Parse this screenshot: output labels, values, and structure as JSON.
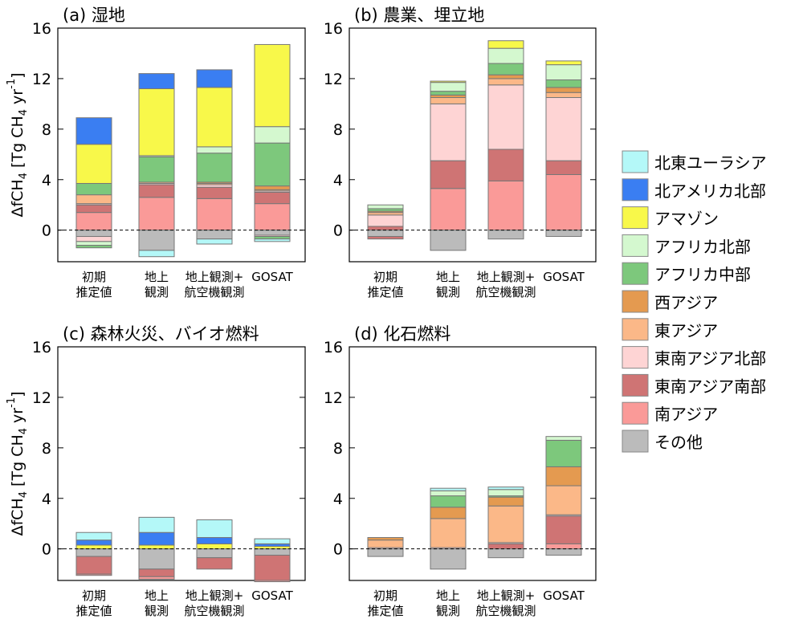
{
  "ylabel": {
    "prefix": "ΔfCH",
    "sub": "4",
    "mid": " [Tg CH",
    "sub2": "4",
    "mid2": " yr",
    "sup": "-1",
    "suffix": "]"
  },
  "colors": {
    "ne_eurasia": "#b4f8f8",
    "na_north": "#3a7ef2",
    "amazon": "#f8f84a",
    "africa_north": "#d4f8cf",
    "africa_central": "#7dc87c",
    "west_asia": "#e49a50",
    "east_asia": "#fbb888",
    "se_asia_north": "#fed4d4",
    "se_asia_south": "#cf7474",
    "south_asia": "#fa9a98",
    "other": "#bbbbbb"
  },
  "legend": [
    {
      "key": "ne_eurasia",
      "label": "北東ユーラシア"
    },
    {
      "key": "na_north",
      "label": "北アメリカ北部"
    },
    {
      "key": "amazon",
      "label": "アマゾン"
    },
    {
      "key": "africa_north",
      "label": "アフリカ北部"
    },
    {
      "key": "africa_central",
      "label": "アフリカ中部"
    },
    {
      "key": "west_asia",
      "label": "西アジア"
    },
    {
      "key": "east_asia",
      "label": "東アジア"
    },
    {
      "key": "se_asia_north",
      "label": "東南アジア北部"
    },
    {
      "key": "se_asia_south",
      "label": "東南アジア南部"
    },
    {
      "key": "south_asia",
      "label": "南アジア"
    },
    {
      "key": "other",
      "label": "その他"
    }
  ],
  "chart_data": [
    {
      "type": "bar",
      "stacked": true,
      "title": "(a) 湿地",
      "categories": [
        [
          "初期",
          "推定値"
        ],
        [
          "地上",
          "観測"
        ],
        [
          "地上観測+",
          "航空機観測"
        ],
        [
          "GOSAT"
        ]
      ],
      "ylim": [
        -2.5,
        16
      ],
      "yticks": [
        0,
        4,
        8,
        12,
        16
      ],
      "positive_order": [
        "south_asia",
        "se_asia_south",
        "se_asia_north",
        "east_asia",
        "west_asia",
        "africa_central",
        "africa_north",
        "amazon",
        "na_north",
        "ne_eurasia"
      ],
      "negative_order": [
        "other",
        "se_asia_north",
        "africa_north",
        "africa_central",
        "ne_eurasia"
      ],
      "series": [
        {
          "key": "south_asia",
          "values": [
            1.4,
            2.6,
            2.5,
            2.1
          ]
        },
        {
          "key": "se_asia_south",
          "values": [
            0.6,
            1.0,
            0.9,
            0.9
          ]
        },
        {
          "key": "se_asia_north",
          "values": [
            0.1,
            0.1,
            0.2,
            0.1
          ]
        },
        {
          "key": "east_asia",
          "values": [
            0.7,
            0.1,
            0.1,
            0.1
          ]
        },
        {
          "key": "west_asia",
          "values": [
            0.0,
            0.0,
            0.1,
            0.3
          ]
        },
        {
          "key": "africa_central",
          "values": [
            0.9,
            2.0,
            2.3,
            3.4
          ]
        },
        {
          "key": "africa_north",
          "values": [
            0.0,
            0.1,
            0.5,
            1.3
          ]
        },
        {
          "key": "amazon",
          "values": [
            3.1,
            5.3,
            4.7,
            6.5
          ]
        },
        {
          "key": "na_north",
          "values": [
            2.1,
            1.2,
            1.4,
            0.0
          ]
        },
        {
          "key": "ne_eurasia",
          "values": [
            0.0,
            0.0,
            0.0,
            0.0
          ]
        },
        {
          "key": "other",
          "values": [
            -0.5,
            -1.6,
            -0.7,
            -0.4
          ]
        },
        {
          "key": "se_asia_north",
          "values": [
            -0.4,
            0.0,
            0.0,
            -0.1
          ]
        },
        {
          "key": "africa_north",
          "values": [
            -0.3,
            0.0,
            0.0,
            0.0
          ]
        },
        {
          "key": "africa_central",
          "values": [
            -0.2,
            0.0,
            0.0,
            -0.2
          ]
        },
        {
          "key": "ne_eurasia",
          "values": [
            0.0,
            -0.5,
            -0.4,
            -0.2
          ]
        }
      ]
    },
    {
      "type": "bar",
      "stacked": true,
      "title": "(b) 農業、埋立地",
      "categories": [
        [
          "初期",
          "推定値"
        ],
        [
          "地上",
          "観測"
        ],
        [
          "地上観測+",
          "航空機観測"
        ],
        [
          "GOSAT"
        ]
      ],
      "ylim": [
        -2.5,
        16
      ],
      "yticks": [
        0,
        4,
        8,
        12,
        16
      ],
      "positive_order": [
        "south_asia",
        "se_asia_south",
        "se_asia_north",
        "east_asia",
        "west_asia",
        "africa_central",
        "africa_north",
        "amazon",
        "na_north",
        "ne_eurasia"
      ],
      "negative_order": [
        "other",
        "se_asia_south"
      ],
      "series": [
        {
          "key": "south_asia",
          "values": [
            0.0,
            3.3,
            3.9,
            4.4
          ]
        },
        {
          "key": "se_asia_south",
          "values": [
            0.3,
            2.2,
            2.5,
            1.1
          ]
        },
        {
          "key": "se_asia_north",
          "values": [
            0.9,
            4.5,
            5.1,
            5.0
          ]
        },
        {
          "key": "east_asia",
          "values": [
            0.2,
            0.5,
            0.5,
            0.4
          ]
        },
        {
          "key": "west_asia",
          "values": [
            0.1,
            0.2,
            0.3,
            0.4
          ]
        },
        {
          "key": "africa_central",
          "values": [
            0.2,
            0.3,
            0.9,
            0.6
          ]
        },
        {
          "key": "africa_north",
          "values": [
            0.3,
            0.7,
            1.2,
            1.2
          ]
        },
        {
          "key": "amazon",
          "values": [
            0.0,
            0.1,
            0.6,
            0.3
          ]
        },
        {
          "key": "na_north",
          "values": [
            0.0,
            0.0,
            0.0,
            0.0
          ]
        },
        {
          "key": "ne_eurasia",
          "values": [
            0.0,
            0.0,
            0.0,
            0.0
          ]
        },
        {
          "key": "other",
          "values": [
            -0.5,
            -1.6,
            -0.7,
            -0.5
          ]
        },
        {
          "key": "se_asia_south",
          "values": [
            -0.2,
            0.0,
            0.0,
            0.0
          ]
        }
      ]
    },
    {
      "type": "bar",
      "stacked": true,
      "title": "(c) 森林火災、バイオ燃料",
      "categories": [
        [
          "初期",
          "推定値"
        ],
        [
          "地上",
          "観測"
        ],
        [
          "地上観測+",
          "航空機観測"
        ],
        [
          "GOSAT"
        ]
      ],
      "ylim": [
        -2.5,
        16
      ],
      "yticks": [
        0,
        4,
        8,
        12,
        16
      ],
      "positive_order": [
        "amazon",
        "na_north",
        "ne_eurasia"
      ],
      "negative_order": [
        "other",
        "se_asia_south",
        "south_asia"
      ],
      "series": [
        {
          "key": "amazon",
          "values": [
            0.3,
            0.3,
            0.4,
            0.2
          ]
        },
        {
          "key": "na_north",
          "values": [
            0.4,
            1.0,
            0.5,
            0.2
          ]
        },
        {
          "key": "ne_eurasia",
          "values": [
            0.6,
            1.2,
            1.4,
            0.4
          ]
        },
        {
          "key": "other",
          "values": [
            -0.6,
            -1.6,
            -0.7,
            -0.5
          ]
        },
        {
          "key": "se_asia_south",
          "values": [
            -1.4,
            -0.6,
            -0.9,
            -2.0
          ]
        },
        {
          "key": "south_asia",
          "values": [
            -0.1,
            -0.2,
            0.0,
            -0.1
          ]
        }
      ]
    },
    {
      "type": "bar",
      "stacked": true,
      "title": "(d) 化石燃料",
      "categories": [
        [
          "初期",
          "推定値"
        ],
        [
          "地上",
          "観測"
        ],
        [
          "地上観測+",
          "航空機観測"
        ],
        [
          "GOSAT"
        ]
      ],
      "ylim": [
        -2.5,
        16
      ],
      "yticks": [
        0,
        4,
        8,
        12,
        16
      ],
      "positive_order": [
        "south_asia",
        "se_asia_south",
        "se_asia_north",
        "east_asia",
        "west_asia",
        "africa_central",
        "africa_north",
        "amazon",
        "na_north",
        "ne_eurasia"
      ],
      "negative_order": [
        "other"
      ],
      "series": [
        {
          "key": "south_asia",
          "values": [
            0.0,
            0.0,
            0.0,
            0.4
          ]
        },
        {
          "key": "se_asia_south",
          "values": [
            0.0,
            0.0,
            0.4,
            2.2
          ]
        },
        {
          "key": "se_asia_north",
          "values": [
            0.1,
            0.1,
            0.1,
            0.1
          ]
        },
        {
          "key": "east_asia",
          "values": [
            0.6,
            2.3,
            2.9,
            2.3
          ]
        },
        {
          "key": "west_asia",
          "values": [
            0.2,
            0.9,
            0.7,
            1.5
          ]
        },
        {
          "key": "africa_central",
          "values": [
            0.0,
            0.9,
            0.1,
            2.1
          ]
        },
        {
          "key": "africa_north",
          "values": [
            0.0,
            0.4,
            0.5,
            0.3
          ]
        },
        {
          "key": "amazon",
          "values": [
            0.0,
            0.0,
            0.0,
            0.0
          ]
        },
        {
          "key": "na_north",
          "values": [
            0.0,
            0.0,
            0.0,
            0.0
          ]
        },
        {
          "key": "ne_eurasia",
          "values": [
            0.0,
            0.2,
            0.2,
            0.0
          ]
        },
        {
          "key": "other",
          "values": [
            -0.6,
            -1.6,
            -0.7,
            -0.5
          ]
        }
      ]
    }
  ]
}
